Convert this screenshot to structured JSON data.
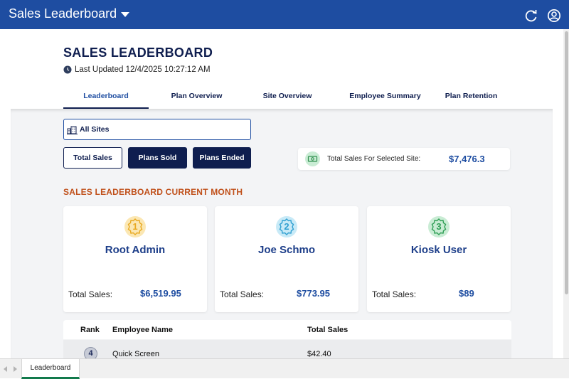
{
  "app": {
    "title": "Sales Leaderboard",
    "brand_color": "#1e4da1",
    "icons": [
      "refresh-icon",
      "account-circle-icon"
    ]
  },
  "header": {
    "title": "SALES LEADERBOARD",
    "last_updated": "Last Updated 12/4/2025 10:27:12 AM"
  },
  "tabs": [
    {
      "label": "Leaderboard",
      "active": true
    },
    {
      "label": "Plan Overview",
      "active": false
    },
    {
      "label": "Site Overview",
      "active": false
    },
    {
      "label": "Employee Summary",
      "active": false
    },
    {
      "label": "Plan Retention",
      "active": false
    }
  ],
  "filters": {
    "site": "All Sites",
    "buttons": [
      {
        "label": "Total Sales",
        "selected": true
      },
      {
        "label": "Plans Sold",
        "selected": false
      },
      {
        "label": "Plans Ended",
        "selected": false
      }
    ]
  },
  "total_sales": {
    "label": "Total Sales For Selected Site:",
    "value": "$7,476.3"
  },
  "section_title": "SALES LEADERBOARD CURRENT MONTH",
  "podium": [
    {
      "rank": "1",
      "name": "Root Admin",
      "sales_label": "Total Sales:",
      "sales_value": "$6,519.95",
      "badge_color": "#f2c14e"
    },
    {
      "rank": "2",
      "name": "Joe Schmo",
      "sales_label": "Total Sales:",
      "sales_value": "$773.95",
      "badge_color": "#5bb8e0"
    },
    {
      "rank": "3",
      "name": "Kiosk User",
      "sales_label": "Total Sales:",
      "sales_value": "$89",
      "badge_color": "#4cb86a"
    }
  ],
  "table": {
    "columns": [
      "Rank",
      "Employee Name",
      "Total Sales"
    ],
    "rows": [
      {
        "rank": "4",
        "employee": "Quick Screen",
        "total": "$42.40"
      }
    ]
  },
  "bottom": {
    "page_tab": "Leaderboard"
  }
}
